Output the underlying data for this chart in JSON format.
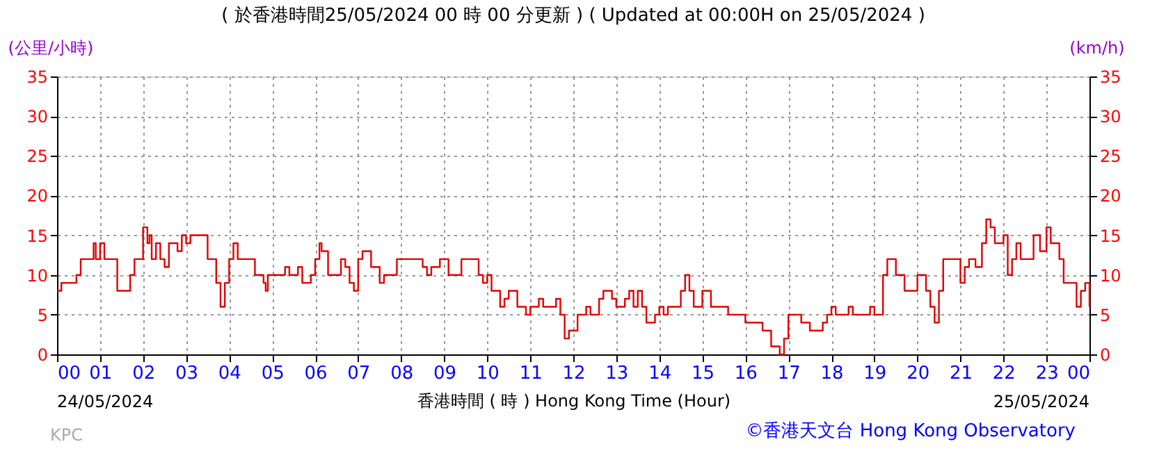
{
  "chart_data": {
    "type": "step",
    "title": "( 於香港時間25/05/2024 00 時 00 分更新 ) ( Updated at 00:00H on 25/05/2024 )",
    "xlabel": "香港時間 ( 時 )  Hong Kong Time (Hour)",
    "ylabel": "(公里/小時)",
    "y2label": "(km/h)",
    "x": [
      0,
      0.1,
      0.3,
      0.45,
      0.55,
      0.8,
      0.85,
      0.9,
      1.0,
      1.1,
      1.3,
      1.4,
      1.6,
      1.7,
      1.8,
      1.9,
      2.0,
      2.1,
      2.15,
      2.2,
      2.3,
      2.4,
      2.5,
      2.6,
      2.8,
      2.9,
      3.0,
      3.1,
      3.4,
      3.5,
      3.7,
      3.8,
      3.9,
      4.0,
      4.1,
      4.2,
      4.5,
      4.6,
      4.8,
      4.85,
      4.9,
      5.2,
      5.3,
      5.4,
      5.6,
      5.7,
      5.9,
      6.0,
      6.1,
      6.15,
      6.3,
      6.5,
      6.6,
      6.7,
      6.8,
      6.9,
      7.0,
      7.1,
      7.3,
      7.5,
      7.6,
      7.8,
      7.9,
      8.3,
      8.5,
      8.6,
      8.7,
      8.9,
      9.1,
      9.3,
      9.4,
      9.7,
      9.8,
      9.9,
      10.0,
      10.1,
      10.3,
      10.4,
      10.5,
      10.7,
      10.9,
      11.0,
      11.2,
      11.3,
      11.5,
      11.6,
      11.7,
      11.8,
      11.9,
      12.1,
      12.3,
      12.4,
      12.6,
      12.7,
      12.9,
      13.0,
      13.2,
      13.3,
      13.4,
      13.5,
      13.6,
      13.7,
      13.9,
      14.0,
      14.1,
      14.2,
      14.4,
      14.5,
      14.6,
      14.7,
      14.8,
      15.0,
      15.2,
      15.4,
      15.6,
      16.0,
      16.4,
      16.6,
      16.8,
      16.9,
      17.0,
      17.3,
      17.5,
      17.8,
      17.9,
      18.0,
      18.1,
      18.4,
      18.5,
      18.9,
      19.0,
      19.2,
      19.3,
      19.5,
      19.7,
      19.9,
      20.0,
      20.2,
      20.3,
      20.4,
      20.5,
      20.6,
      20.9,
      21.0,
      21.1,
      21.2,
      21.35,
      21.5,
      21.6,
      21.7,
      21.8,
      22.0,
      22.1,
      22.2,
      22.3,
      22.4,
      22.6,
      22.7,
      22.85,
      23.0,
      23.1,
      23.3,
      23.4,
      23.6,
      23.7,
      23.8,
      23.9,
      24.0
    ],
    "series": [
      {
        "color": "#e00000",
        "values": [
          8,
          9,
          9,
          10,
          12,
          12,
          14,
          12,
          14,
          12,
          12,
          8,
          8,
          10,
          12,
          12,
          16,
          14,
          15,
          12,
          14,
          12,
          11,
          14,
          13,
          15,
          14,
          15,
          15,
          12,
          9,
          6,
          9,
          12,
          14,
          12,
          12,
          10,
          9,
          8,
          10,
          10,
          11,
          10,
          11,
          9,
          10,
          12,
          14,
          13,
          10,
          10,
          12,
          11,
          9,
          8,
          12,
          13,
          11,
          9,
          10,
          10,
          12,
          12,
          11,
          10,
          11,
          12,
          10,
          10,
          12,
          12,
          10,
          9,
          10,
          8,
          6,
          7,
          8,
          6,
          5,
          6,
          7,
          6,
          6,
          7,
          5,
          2,
          3,
          5,
          6,
          5,
          7,
          8,
          7,
          6,
          7,
          8,
          6,
          8,
          6,
          4,
          5,
          6,
          5,
          6,
          6,
          8,
          10,
          8,
          6,
          8,
          6,
          6,
          5,
          4,
          3,
          1,
          0,
          2,
          5,
          4,
          3,
          4,
          5,
          6,
          5,
          6,
          5,
          6,
          5,
          10,
          12,
          10,
          8,
          8,
          10,
          8,
          6,
          4,
          8,
          12,
          12,
          9,
          11,
          12,
          11,
          14,
          17,
          16,
          14,
          15,
          10,
          12,
          14,
          12,
          12,
          15,
          13,
          16,
          14,
          12,
          9,
          9,
          6,
          8,
          9,
          6
        ]
      }
    ],
    "xlim": [
      0,
      24
    ],
    "xticks": [
      {
        "value": 0,
        "label": "00"
      },
      {
        "value": 1,
        "label": "01"
      },
      {
        "value": 2,
        "label": "02"
      },
      {
        "value": 3,
        "label": "03"
      },
      {
        "value": 4,
        "label": "04"
      },
      {
        "value": 5,
        "label": "05"
      },
      {
        "value": 6,
        "label": "06"
      },
      {
        "value": 7,
        "label": "07"
      },
      {
        "value": 8,
        "label": "08"
      },
      {
        "value": 9,
        "label": "09"
      },
      10,
      11,
      12,
      13,
      14,
      15,
      16,
      17,
      18,
      19,
      20,
      21,
      22,
      23,
      {
        "value": 24,
        "label": "00"
      }
    ],
    "ylim": [
      0,
      35
    ],
    "yticks": [
      0,
      5,
      10,
      15,
      20,
      25,
      30,
      35
    ],
    "y2lim": [
      0,
      35
    ],
    "y2ticks": [
      0,
      5,
      10,
      15,
      20,
      25,
      30,
      35
    ],
    "grid": true,
    "line_style": "solid",
    "marker": "none",
    "annotations": [
      "24/05/2024",
      "25/05/2024",
      "KPC",
      "©香港天文台 Hong Kong Observatory"
    ]
  }
}
